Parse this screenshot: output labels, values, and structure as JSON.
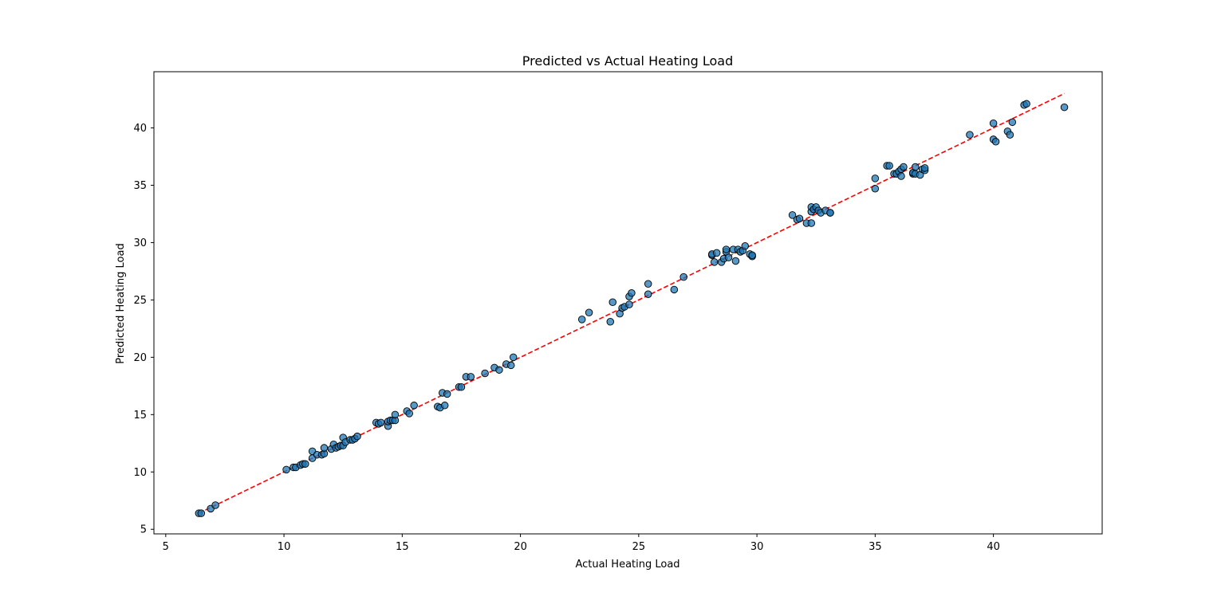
{
  "chart_data": {
    "type": "scatter",
    "title": "Predicted vs Actual Heating Load",
    "xlabel": "Actual Heating Load",
    "ylabel": "Predicted Heating Load",
    "xlim": [
      4.5,
      44.6
    ],
    "ylim": [
      4.6,
      44.9
    ],
    "x_ticks": [
      5,
      10,
      15,
      20,
      25,
      30,
      35,
      40
    ],
    "x_tick_labels": [
      "5",
      "10",
      "15",
      "20",
      "25",
      "30",
      "35",
      "40"
    ],
    "y_ticks": [
      5,
      10,
      15,
      20,
      25,
      30,
      35,
      40
    ],
    "y_tick_labels": [
      "5",
      "10",
      "15",
      "20",
      "25",
      "30",
      "35",
      "40"
    ],
    "grid": false,
    "reference_line": {
      "from": [
        6.4,
        6.4
      ],
      "to": [
        43.0,
        43.0
      ],
      "color": "#ff0000",
      "style": "dashed"
    },
    "marker_fill": "#1f77b4",
    "marker_edge": "#000000",
    "points": [
      [
        6.4,
        6.4
      ],
      [
        6.5,
        6.4
      ],
      [
        6.9,
        6.8
      ],
      [
        7.1,
        7.1
      ],
      [
        10.1,
        10.2
      ],
      [
        10.4,
        10.4
      ],
      [
        10.5,
        10.4
      ],
      [
        10.7,
        10.6
      ],
      [
        10.8,
        10.7
      ],
      [
        10.9,
        10.7
      ],
      [
        11.2,
        11.2
      ],
      [
        11.2,
        11.8
      ],
      [
        11.4,
        11.5
      ],
      [
        11.6,
        11.5
      ],
      [
        11.7,
        11.6
      ],
      [
        11.7,
        12.1
      ],
      [
        12.0,
        12.0
      ],
      [
        12.1,
        12.4
      ],
      [
        12.2,
        12.1
      ],
      [
        12.3,
        12.2
      ],
      [
        12.4,
        12.3
      ],
      [
        12.5,
        12.3
      ],
      [
        12.5,
        13.0
      ],
      [
        12.6,
        12.6
      ],
      [
        12.8,
        12.8
      ],
      [
        12.9,
        12.8
      ],
      [
        13.0,
        12.9
      ],
      [
        13.1,
        13.1
      ],
      [
        13.9,
        14.3
      ],
      [
        14.0,
        14.2
      ],
      [
        14.1,
        14.3
      ],
      [
        14.4,
        14.0
      ],
      [
        14.4,
        14.4
      ],
      [
        14.5,
        14.5
      ],
      [
        14.6,
        14.5
      ],
      [
        14.7,
        14.5
      ],
      [
        14.7,
        15.0
      ],
      [
        15.2,
        15.3
      ],
      [
        15.3,
        15.1
      ],
      [
        15.5,
        15.8
      ],
      [
        16.5,
        15.7
      ],
      [
        16.6,
        15.6
      ],
      [
        16.7,
        16.9
      ],
      [
        16.8,
        15.8
      ],
      [
        16.9,
        16.8
      ],
      [
        17.4,
        17.4
      ],
      [
        17.5,
        17.4
      ],
      [
        17.7,
        18.3
      ],
      [
        17.9,
        18.3
      ],
      [
        18.5,
        18.6
      ],
      [
        18.9,
        19.1
      ],
      [
        19.1,
        18.9
      ],
      [
        19.4,
        19.4
      ],
      [
        19.6,
        19.3
      ],
      [
        19.7,
        20.0
      ],
      [
        22.6,
        23.3
      ],
      [
        22.9,
        23.9
      ],
      [
        23.8,
        23.1
      ],
      [
        23.9,
        24.8
      ],
      [
        24.2,
        23.8
      ],
      [
        24.3,
        24.3
      ],
      [
        24.4,
        24.4
      ],
      [
        24.6,
        24.6
      ],
      [
        24.6,
        25.3
      ],
      [
        24.7,
        25.6
      ],
      [
        25.4,
        25.5
      ],
      [
        25.4,
        26.4
      ],
      [
        26.5,
        25.9
      ],
      [
        26.9,
        27.0
      ],
      [
        28.1,
        28.9
      ],
      [
        28.1,
        29.0
      ],
      [
        28.2,
        28.3
      ],
      [
        28.3,
        29.1
      ],
      [
        28.5,
        28.3
      ],
      [
        28.6,
        28.6
      ],
      [
        28.7,
        29.2
      ],
      [
        28.7,
        29.4
      ],
      [
        28.8,
        28.7
      ],
      [
        29.0,
        29.4
      ],
      [
        29.1,
        28.4
      ],
      [
        29.2,
        29.4
      ],
      [
        29.3,
        29.2
      ],
      [
        29.4,
        29.3
      ],
      [
        29.5,
        29.7
      ],
      [
        29.7,
        29.0
      ],
      [
        29.8,
        28.8
      ],
      [
        29.8,
        28.9
      ],
      [
        31.5,
        32.4
      ],
      [
        31.7,
        32.0
      ],
      [
        31.8,
        32.1
      ],
      [
        32.1,
        31.7
      ],
      [
        32.3,
        31.7
      ],
      [
        32.3,
        32.7
      ],
      [
        32.3,
        33.1
      ],
      [
        32.4,
        32.9
      ],
      [
        32.5,
        33.1
      ],
      [
        32.6,
        32.8
      ],
      [
        32.7,
        32.6
      ],
      [
        32.9,
        32.8
      ],
      [
        33.1,
        32.6
      ],
      [
        33.1,
        32.6
      ],
      [
        35.0,
        34.7
      ],
      [
        35.0,
        35.6
      ],
      [
        35.5,
        36.7
      ],
      [
        35.6,
        36.7
      ],
      [
        35.8,
        36.0
      ],
      [
        35.9,
        36.0
      ],
      [
        36.0,
        36.2
      ],
      [
        36.1,
        35.8
      ],
      [
        36.1,
        36.4
      ],
      [
        36.2,
        36.6
      ],
      [
        36.6,
        36.0
      ],
      [
        36.6,
        36.1
      ],
      [
        36.7,
        36.6
      ],
      [
        36.7,
        36.0
      ],
      [
        36.9,
        35.9
      ],
      [
        37.0,
        36.4
      ],
      [
        37.1,
        36.3
      ],
      [
        37.1,
        36.5
      ],
      [
        39.0,
        39.4
      ],
      [
        40.0,
        40.4
      ],
      [
        40.0,
        39.0
      ],
      [
        40.1,
        38.8
      ],
      [
        40.6,
        39.7
      ],
      [
        40.7,
        39.4
      ],
      [
        40.8,
        40.5
      ],
      [
        41.3,
        42.0
      ],
      [
        41.4,
        42.1
      ],
      [
        43.0,
        41.8
      ]
    ]
  }
}
